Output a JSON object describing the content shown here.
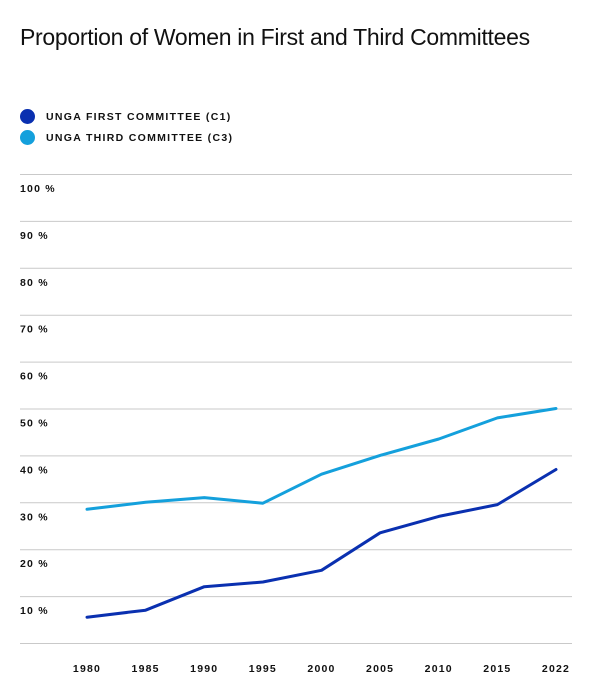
{
  "title": "Proportion of Women in First and Third Committees",
  "legend": [
    {
      "label": "UNGA FIRST COMMITTEE (C1)",
      "color": "#0a30b0"
    },
    {
      "label": "UNGA THIRD COMMITTEE (C3)",
      "color": "#14a0dc"
    }
  ],
  "chart_data": {
    "type": "line",
    "title": "Proportion of Women in First and Third Committees",
    "xlabel": "",
    "ylabel": "",
    "categories": [
      "1980",
      "1985",
      "1990",
      "1995",
      "2000",
      "2005",
      "2010",
      "2015",
      "2022"
    ],
    "y_ticks": [
      "10 %",
      "20 %",
      "30 %",
      "40 %",
      "50 %",
      "60 %",
      "70 %",
      "80 %",
      "90 %",
      "100 %"
    ],
    "ylim": [
      0,
      100
    ],
    "grid": true,
    "legend_position": "top-left",
    "series": [
      {
        "name": "UNGA FIRST COMMITTEE (C1)",
        "color": "#0a30b0",
        "values": [
          5.5,
          7,
          12,
          13,
          15.5,
          23.5,
          27,
          29.5,
          37
        ]
      },
      {
        "name": "UNGA THIRD COMMITTEE (C3)",
        "color": "#14a0dc",
        "values": [
          28.5,
          30,
          31,
          29.8,
          36,
          40,
          43.5,
          48,
          50
        ]
      }
    ]
  }
}
